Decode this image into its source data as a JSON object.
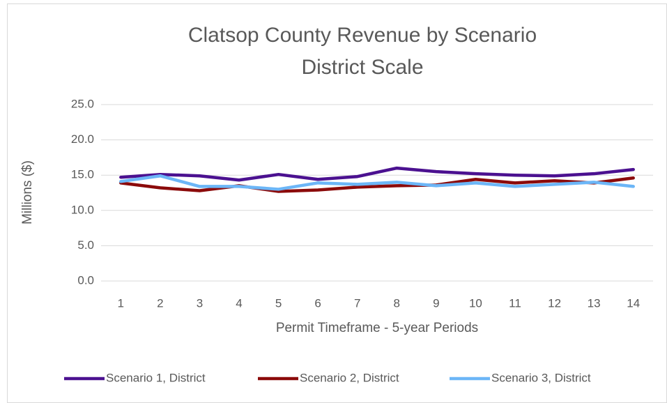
{
  "chart_data": {
    "type": "line",
    "title": "Clatsop County Revenue by Scenario",
    "subtitle": "District Scale",
    "x_label": "Permit Timeframe - 5-year Periods",
    "y_label": "Millions ($)",
    "categories": [
      1,
      2,
      3,
      4,
      5,
      6,
      7,
      8,
      9,
      10,
      11,
      12,
      13,
      14
    ],
    "series": [
      {
        "name": "Scenario 1, District",
        "color": "#4b1190",
        "values": [
          14.7,
          15.1,
          14.9,
          14.3,
          15.1,
          14.4,
          14.8,
          16.0,
          15.5,
          15.2,
          15.0,
          14.9,
          15.2,
          15.8
        ]
      },
      {
        "name": "Scenario 2, District",
        "color": "#8b0a0a",
        "values": [
          13.9,
          13.2,
          12.8,
          13.5,
          12.7,
          12.9,
          13.3,
          13.5,
          13.6,
          14.4,
          13.9,
          14.2,
          13.9,
          14.6
        ]
      },
      {
        "name": "Scenario 3, District",
        "color": "#6cb6f7",
        "values": [
          14.1,
          14.9,
          13.4,
          13.4,
          13.0,
          13.9,
          13.7,
          14.0,
          13.5,
          13.9,
          13.4,
          13.7,
          14.0,
          13.4
        ]
      }
    ],
    "ylim": [
      0,
      25
    ],
    "yticks": [
      {
        "value": 0,
        "label": "0.0"
      },
      {
        "value": 5,
        "label": "5.0"
      },
      {
        "value": 10,
        "label": "10.0"
      },
      {
        "value": 15,
        "label": "15.0"
      },
      {
        "value": 20,
        "label": "20.0"
      },
      {
        "value": 25,
        "label": "25.0"
      }
    ],
    "grid": true,
    "legend": "bottom"
  }
}
